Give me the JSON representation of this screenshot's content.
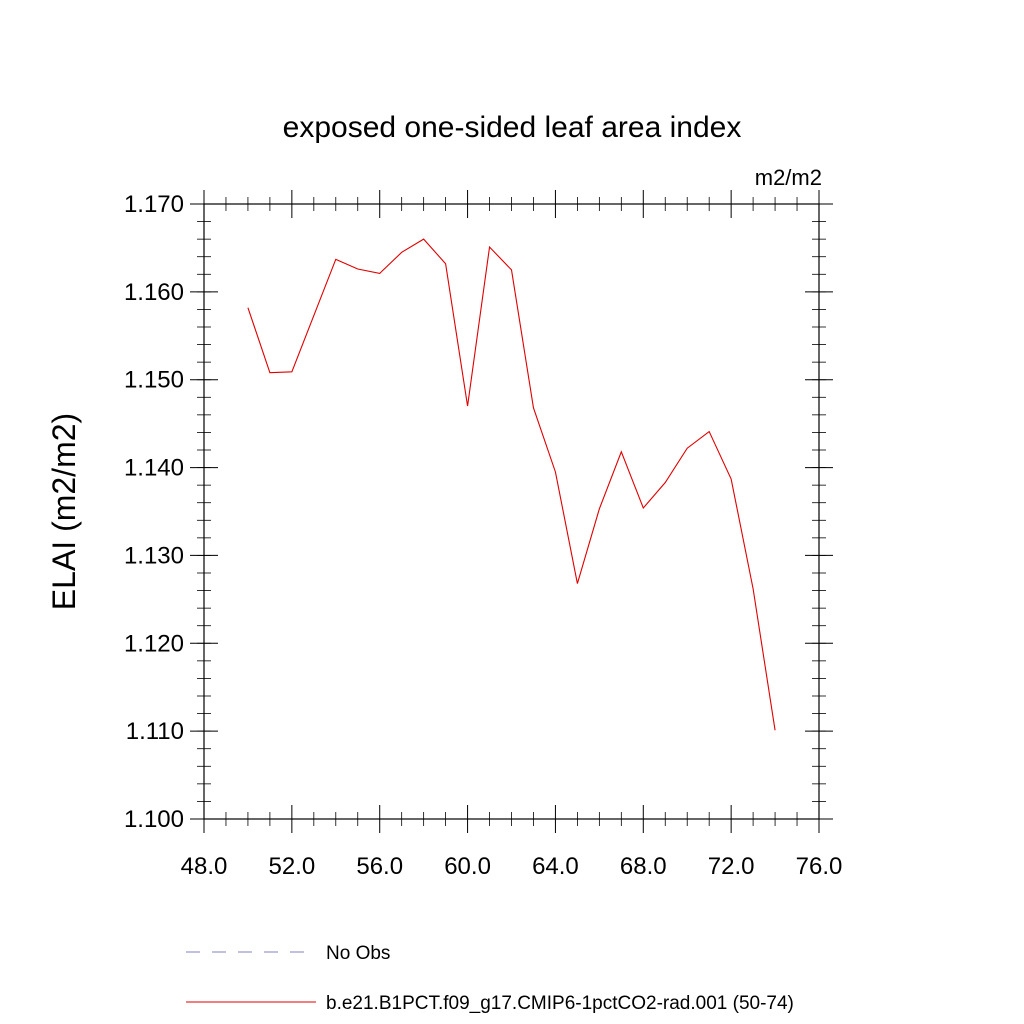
{
  "chart_data": {
    "type": "line",
    "title": "exposed one-sided leaf area index",
    "units": "m2/m2",
    "xlabel": "",
    "ylabel": "ELAI  (m2/m2)",
    "xlim": [
      48,
      76
    ],
    "ylim": [
      1.1,
      1.17
    ],
    "x_ticks": [
      48,
      52,
      56,
      60,
      64,
      68,
      72,
      76
    ],
    "x_tick_labels": [
      "48.0",
      "52.0",
      "56.0",
      "60.0",
      "64.0",
      "68.0",
      "72.0",
      "76.0"
    ],
    "y_ticks": [
      1.1,
      1.11,
      1.12,
      1.13,
      1.14,
      1.15,
      1.16,
      1.17
    ],
    "y_tick_labels": [
      "1.100",
      "1.110",
      "1.120",
      "1.130",
      "1.140",
      "1.150",
      "1.160",
      "1.170"
    ],
    "grid": false,
    "legend_position": "bottom",
    "series": [
      {
        "name": "No Obs",
        "color": "#8080c0",
        "style": "dashed",
        "x": [],
        "y": []
      },
      {
        "name": "b.e21.B1PCT.f09_g17.CMIP6-1pctCO2-rad.001 (50-74)",
        "color": "#e00000",
        "style": "solid",
        "x": [
          50,
          51,
          52,
          53,
          54,
          55,
          56,
          57,
          58,
          59,
          60,
          61,
          62,
          63,
          64,
          65,
          66,
          67,
          68,
          69,
          70,
          71,
          72,
          73,
          74
        ],
        "y": [
          1.1582,
          1.1508,
          1.1509,
          1.1573,
          1.1637,
          1.1626,
          1.1621,
          1.1645,
          1.166,
          1.1632,
          1.147,
          1.1651,
          1.1625,
          1.1468,
          1.1395,
          1.1268,
          1.1353,
          1.1418,
          1.1354,
          1.1383,
          1.1422,
          1.1441,
          1.1387,
          1.1262,
          1.1101
        ]
      }
    ]
  }
}
